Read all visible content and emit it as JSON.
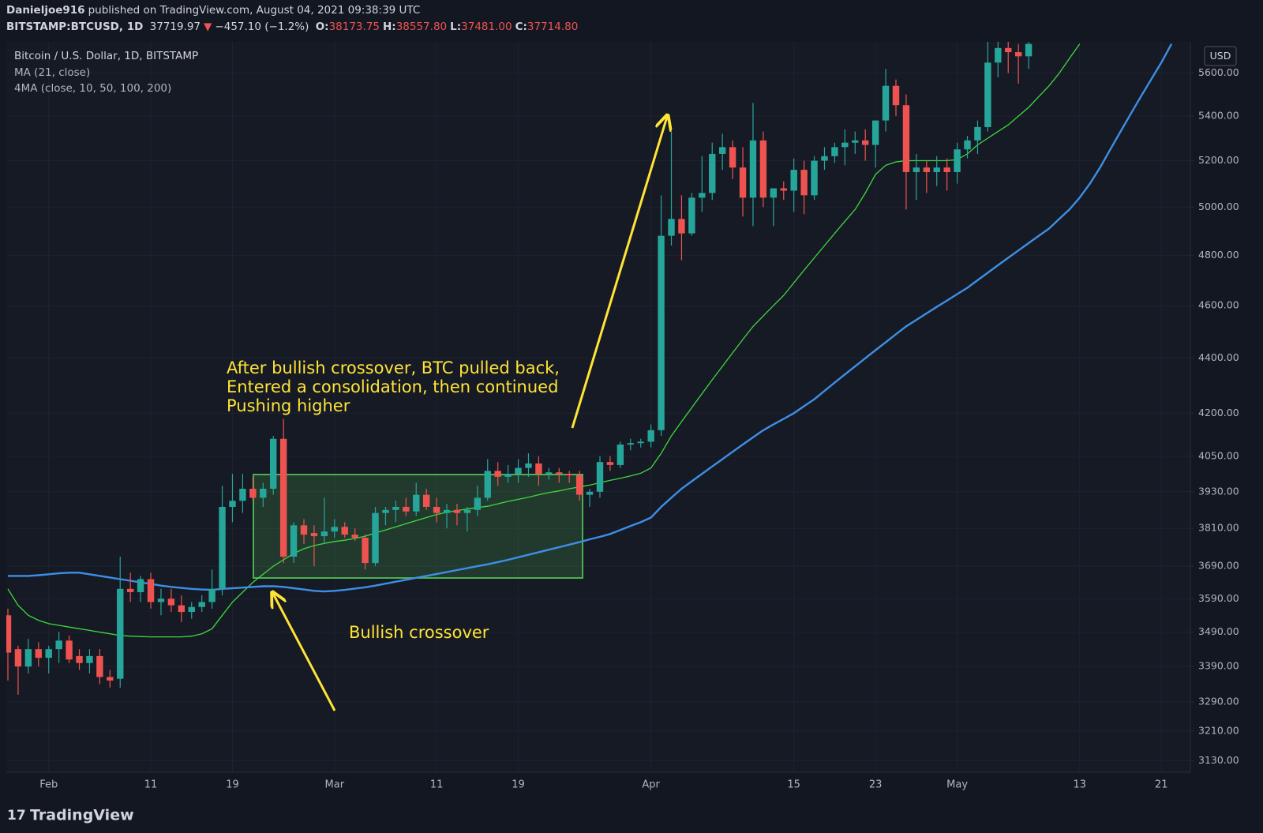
{
  "header": {
    "author": "Danieljoe916",
    "published": "published on TradingView.com, August 04, 2021 09:38:39 UTC",
    "symbol": "BITSTAMP:BTCUSD, 1D",
    "last": "37719.97",
    "direction": "▼",
    "change": "−457.10 (−1.2%)",
    "ohlc": [
      {
        "label": "O:",
        "value": "38173.75"
      },
      {
        "label": "H:",
        "value": "38557.80"
      },
      {
        "label": "L:",
        "value": "37481.00"
      },
      {
        "label": "C:",
        "value": "37714.80"
      }
    ]
  },
  "footer": {
    "brand": "TradingView"
  },
  "chart_data": {
    "type": "candlestick",
    "title": "Bitcoin / U.S. Dollar, 1D, BITSTAMP",
    "currency": "USD",
    "up_color": "#26a69a",
    "down_color": "#ef5350",
    "log_scale": true,
    "grid": true,
    "categories": [
      null,
      null,
      null,
      null,
      "Feb",
      null,
      null,
      null,
      null,
      null,
      null,
      null,
      null,
      null,
      "11",
      null,
      null,
      null,
      null,
      null,
      null,
      null,
      "19",
      null,
      null,
      null,
      null,
      null,
      null,
      null,
      null,
      null,
      "Mar",
      null,
      null,
      null,
      null,
      null,
      null,
      null,
      null,
      null,
      "11",
      null,
      null,
      null,
      null,
      null,
      null,
      null,
      "19",
      null,
      null,
      null,
      null,
      null,
      null,
      null,
      null,
      null,
      null,
      null,
      null,
      "Apr",
      null,
      null,
      null,
      null,
      null,
      null,
      null,
      null,
      null,
      null,
      null,
      null,
      null,
      "15",
      null,
      null,
      null,
      null,
      null,
      null,
      null,
      "23",
      null,
      null,
      null,
      null,
      null,
      null,
      null,
      "May",
      null,
      null,
      null,
      null,
      null,
      null,
      null,
      null,
      null,
      null,
      null,
      "13",
      null,
      null,
      null,
      null,
      null,
      null,
      null,
      "21",
      null,
      null
    ],
    "open": [
      3540,
      3440,
      3390,
      3440,
      3415,
      3440,
      3465,
      3420,
      3400,
      3420,
      3360,
      3355,
      3620,
      3610,
      3650,
      3580,
      3590,
      3570,
      3550,
      3565,
      3580,
      3620,
      3880,
      3900,
      3940,
      3910,
      3940,
      4110,
      3720,
      3820,
      3795,
      3785,
      3800,
      3815,
      3790,
      3780,
      3700,
      3860,
      3870,
      3880,
      3865,
      3920,
      3880,
      3860,
      3870,
      3860,
      3870,
      3910,
      4000,
      3980,
      3990,
      4010,
      4025,
      3990,
      3995,
      3990,
      3985,
      3920,
      3930,
      4030,
      4020,
      4090,
      4095,
      4100,
      4140,
      4880,
      4950,
      4890,
      5040,
      5060,
      5230,
      5260,
      5170,
      5040,
      5290,
      5040,
      5080,
      5070,
      5160,
      5050,
      5200,
      5220,
      5260,
      5280,
      5290,
      5270,
      5380,
      5540,
      5450,
      5150,
      5170,
      5150,
      5170,
      5150,
      5250,
      5290,
      5350,
      5650,
      5720,
      5700,
      5680,
      null,
      null,
      null,
      null,
      null,
      null,
      null,
      null,
      null,
      null,
      null,
      null,
      null,
      null,
      null
    ],
    "high": [
      3560,
      3450,
      3470,
      3460,
      3450,
      3490,
      3480,
      3440,
      3440,
      3440,
      3380,
      3720,
      3670,
      3660,
      3670,
      3620,
      3620,
      3600,
      3580,
      3600,
      3680,
      3950,
      3990,
      3990,
      3980,
      3960,
      4120,
      4180,
      3830,
      3840,
      3820,
      3910,
      3840,
      3830,
      3810,
      3790,
      3880,
      3880,
      3900,
      3910,
      3960,
      3940,
      3910,
      3890,
      3890,
      3880,
      3950,
      4040,
      4030,
      4020,
      4040,
      4060,
      4050,
      4010,
      4010,
      4000,
      4000,
      3940,
      4050,
      4050,
      4100,
      4110,
      4110,
      4160,
      5050,
      5330,
      5050,
      5060,
      5220,
      5280,
      5320,
      5290,
      5260,
      5460,
      5330,
      5070,
      5110,
      5210,
      5200,
      5220,
      5260,
      5280,
      5340,
      5330,
      5340,
      5380,
      5620,
      5570,
      5500,
      5230,
      5200,
      5220,
      5210,
      5280,
      5310,
      5380,
      5750,
      5750,
      5750,
      5740,
      5750,
      null,
      null,
      null,
      null,
      null,
      null,
      null,
      null,
      null,
      null,
      null,
      null,
      null,
      null,
      null
    ],
    "low": [
      3350,
      3310,
      3370,
      3390,
      3370,
      3400,
      3400,
      3380,
      3370,
      3340,
      3330,
      3330,
      3580,
      3580,
      3560,
      3540,
      3550,
      3520,
      3530,
      3550,
      3560,
      3600,
      3830,
      3860,
      3900,
      3880,
      3920,
      3700,
      3700,
      3760,
      3690,
      3760,
      3780,
      3780,
      3770,
      3680,
      3690,
      3820,
      3830,
      3850,
      3850,
      3870,
      3830,
      3810,
      3820,
      3800,
      3850,
      3900,
      3950,
      3960,
      3960,
      3980,
      3950,
      3970,
      3960,
      3960,
      3900,
      3880,
      3910,
      4000,
      4010,
      4070,
      4080,
      4080,
      4120,
      4840,
      4780,
      4880,
      4980,
      5030,
      5160,
      5120,
      4960,
      4920,
      5000,
      4920,
      5030,
      4980,
      4970,
      5030,
      5160,
      5190,
      5180,
      5230,
      5200,
      5170,
      5330,
      5400,
      4990,
      5030,
      5060,
      5090,
      5070,
      5100,
      5210,
      5230,
      5330,
      5580,
      5600,
      5550,
      5620,
      null,
      null,
      null,
      null,
      null,
      null,
      null,
      null,
      null,
      null,
      null,
      null,
      null,
      null,
      null
    ],
    "close": [
      3430,
      3390,
      3440,
      3415,
      3440,
      3465,
      3410,
      3400,
      3420,
      3360,
      3350,
      3620,
      3610,
      3650,
      3580,
      3590,
      3570,
      3550,
      3565,
      3580,
      3620,
      3880,
      3900,
      3940,
      3910,
      3940,
      4110,
      3720,
      3820,
      3790,
      3785,
      3800,
      3815,
      3790,
      3780,
      3700,
      3860,
      3870,
      3880,
      3865,
      3920,
      3880,
      3860,
      3870,
      3860,
      3870,
      3910,
      4000,
      3980,
      3990,
      4010,
      4025,
      3990,
      3995,
      3990,
      3985,
      3920,
      3930,
      4030,
      4020,
      4090,
      4095,
      4100,
      4140,
      4880,
      4950,
      4890,
      5040,
      5060,
      5230,
      5260,
      5170,
      5040,
      5290,
      5040,
      5080,
      5070,
      5160,
      5050,
      5200,
      5220,
      5260,
      5280,
      5290,
      5270,
      5380,
      5540,
      5450,
      5150,
      5170,
      5150,
      5170,
      5150,
      5250,
      5290,
      5350,
      5650,
      5720,
      5700,
      5680,
      5740,
      null,
      null,
      null,
      null,
      null,
      null,
      null,
      null,
      null,
      null,
      null,
      null,
      null,
      null,
      null
    ],
    "series": [
      {
        "name": "MA (21, close)",
        "color": "#3ed93e",
        "values": [
          3620,
          3570,
          3540,
          3525,
          3515,
          3510,
          3505,
          3500,
          3495,
          3490,
          3485,
          3480,
          3478,
          3477,
          3476,
          3476,
          3476,
          3476,
          3478,
          3485,
          3500,
          3540,
          3580,
          3610,
          3640,
          3665,
          3690,
          3710,
          3730,
          3745,
          3755,
          3762,
          3768,
          3772,
          3778,
          3785,
          3795,
          3805,
          3815,
          3825,
          3835,
          3845,
          3855,
          3862,
          3868,
          3873,
          3878,
          3882,
          3890,
          3898,
          3905,
          3912,
          3920,
          3927,
          3933,
          3940,
          3946,
          3952,
          3960,
          3968,
          3975,
          3983,
          3992,
          4010,
          4060,
          4120,
          4170,
          4220,
          4270,
          4320,
          4370,
          4420,
          4470,
          4520,
          4560,
          4600,
          4640,
          4690,
          4740,
          4790,
          4840,
          4890,
          4940,
          4990,
          5060,
          5140,
          5180,
          5195,
          5200,
          5200,
          5200,
          5200,
          5200,
          5205,
          5230,
          5270,
          5300,
          5330,
          5360,
          5400,
          5440,
          5490,
          5540,
          5600,
          5670,
          5740,
          null,
          null,
          null,
          null,
          null,
          null,
          null,
          null,
          null,
          null
        ]
      },
      {
        "name": "4MA (close, 10, 50, 100, 200)",
        "color": "#3d8fe6",
        "values": [
          3660,
          3660,
          3660,
          3662,
          3665,
          3668,
          3670,
          3670,
          3665,
          3660,
          3655,
          3650,
          3645,
          3640,
          3635,
          3630,
          3626,
          3623,
          3620,
          3618,
          3617,
          3620,
          3622,
          3624,
          3626,
          3628,
          3628,
          3626,
          3622,
          3618,
          3614,
          3612,
          3614,
          3617,
          3621,
          3625,
          3630,
          3636,
          3642,
          3648,
          3654,
          3660,
          3666,
          3672,
          3678,
          3684,
          3690,
          3696,
          3703,
          3710,
          3718,
          3726,
          3734,
          3742,
          3750,
          3758,
          3766,
          3775,
          3783,
          3792,
          3805,
          3818,
          3830,
          3845,
          3880,
          3910,
          3940,
          3965,
          3990,
          4015,
          4040,
          4065,
          4090,
          4115,
          4140,
          4160,
          4180,
          4200,
          4225,
          4250,
          4280,
          4310,
          4340,
          4370,
          4400,
          4430,
          4460,
          4490,
          4520,
          4545,
          4570,
          4595,
          4620,
          4645,
          4670,
          4700,
          4730,
          4760,
          4790,
          4820,
          4850,
          4880,
          4910,
          4950,
          4990,
          5040,
          5100,
          5170,
          5250,
          5330,
          5410,
          5490,
          5570,
          5650,
          5740,
          null
        ]
      }
    ],
    "ylim": [
      3100,
      5750
    ],
    "yticks": [
      {
        "value": 3130,
        "label": "3130.00"
      },
      {
        "value": 3210,
        "label": "3210.00"
      },
      {
        "value": 3290,
        "label": "3290.00"
      },
      {
        "value": 3390,
        "label": "3390.00"
      },
      {
        "value": 3490,
        "label": "3490.00"
      },
      {
        "value": 3590,
        "label": "3590.00"
      },
      {
        "value": 3690,
        "label": "3690.00"
      },
      {
        "value": 3810,
        "label": "3810.00"
      },
      {
        "value": 3930,
        "label": "3930.00"
      },
      {
        "value": 4050,
        "label": "4050.00"
      },
      {
        "value": 4200,
        "label": "4200.00"
      },
      {
        "value": 4400,
        "label": "4400.00"
      },
      {
        "value": 4600,
        "label": "4600.00"
      },
      {
        "value": 4800,
        "label": "4800.00"
      },
      {
        "value": 5000,
        "label": "5000.00"
      },
      {
        "value": 5200,
        "label": "5200.00"
      },
      {
        "value": 5400,
        "label": "5400.00"
      },
      {
        "value": 5600,
        "label": "5600.00"
      }
    ],
    "annotations": [
      "After bullish crossover, BTC pulled back,",
      "Entered a consolidation, then continued",
      "Pushing higher",
      "Bullish crossover"
    ]
  }
}
